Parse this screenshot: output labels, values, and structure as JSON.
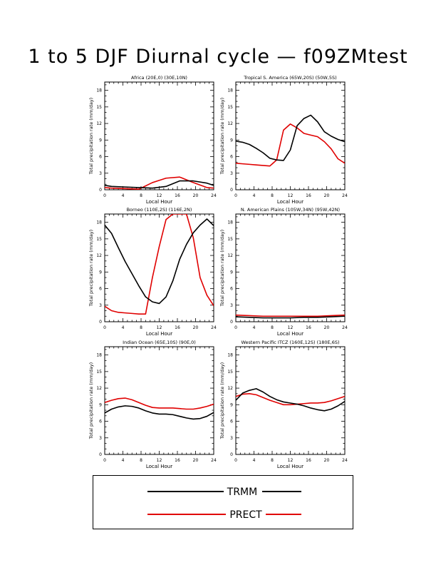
{
  "title": "1 to 5 DJF Diurnal cycle — f09ZMtest",
  "colors": {
    "trmm": "#000000",
    "prect": "#e00000"
  },
  "legend": {
    "trmm_label": "TRMM",
    "prect_label": "PRECT"
  },
  "chart_data": [
    {
      "type": "line",
      "title": "Africa (20E,0) (30E,10N)",
      "xlabel": "Local Hour",
      "ylabel": "Total precipitation rate (mm/day)",
      "xlim": [
        0,
        24
      ],
      "ylim": [
        0,
        19.5
      ],
      "xticks": [
        0,
        4,
        8,
        12,
        16,
        20,
        24
      ],
      "yticks": [
        0,
        3,
        6,
        9,
        12,
        15,
        18
      ],
      "x": [
        0,
        1.5,
        4.5,
        7.5,
        10.5,
        13.5,
        16.5,
        19.5,
        22.5,
        24
      ],
      "series": [
        {
          "name": "TRMM",
          "values": [
            0.8,
            0.6,
            0.5,
            0.4,
            0.3,
            0.6,
            1.6,
            1.6,
            1.2,
            0.8
          ]
        },
        {
          "name": "PRECT",
          "values": [
            0.4,
            0.3,
            0.2,
            0.1,
            1.3,
            2.1,
            2.3,
            1.3,
            0.4,
            0.3
          ]
        }
      ]
    },
    {
      "type": "line",
      "title": "Tropical S. America (65W,20S) (50W,5S)",
      "xlabel": "Local Hour",
      "ylabel": "Total precipitation rate (mm/day)",
      "xlim": [
        0,
        24
      ],
      "ylim": [
        0,
        19.5
      ],
      "xticks": [
        0,
        4,
        8,
        12,
        16,
        20,
        24
      ],
      "yticks": [
        0,
        3,
        6,
        9,
        12,
        15,
        18
      ],
      "x": [
        0,
        1.5,
        3,
        4.5,
        6,
        7.5,
        9,
        10.5,
        12,
        13.5,
        15,
        16.5,
        18,
        19.5,
        21,
        22.5,
        24
      ],
      "series": [
        {
          "name": "TRMM",
          "values": [
            8.8,
            8.6,
            8.2,
            7.5,
            6.7,
            5.7,
            5.4,
            5.3,
            7.2,
            11.6,
            12.9,
            13.5,
            12.3,
            10.5,
            9.7,
            9.1,
            8.7
          ]
        },
        {
          "name": "PRECT",
          "values": [
            4.8,
            4.7,
            4.6,
            4.5,
            4.4,
            4.3,
            5.4,
            10.8,
            11.9,
            11.2,
            10.2,
            9.9,
            9.6,
            8.7,
            7.4,
            5.6,
            4.8
          ]
        }
      ]
    },
    {
      "type": "line",
      "title": "Borneo (110E,2S) (116E,2N)",
      "xlabel": "Local Hour",
      "ylabel": "Total precipitation rate (mm/day)",
      "xlim": [
        0,
        24
      ],
      "ylim": [
        0,
        19.5
      ],
      "xticks": [
        0,
        4,
        8,
        12,
        16,
        20,
        24
      ],
      "yticks": [
        0,
        3,
        6,
        9,
        12,
        15,
        18
      ],
      "x": [
        0,
        1.5,
        3,
        4.5,
        6,
        7.5,
        9,
        10.5,
        12,
        13.5,
        15,
        16.5,
        18,
        19.5,
        21,
        22.5,
        24
      ],
      "series": [
        {
          "name": "TRMM",
          "values": [
            17.5,
            16.0,
            13.4,
            10.9,
            8.7,
            6.5,
            4.5,
            3.6,
            3.3,
            4.5,
            7.4,
            11.3,
            14.0,
            16.1,
            17.5,
            18.6,
            17.4
          ]
        },
        {
          "name": "PRECT",
          "values": [
            2.8,
            2.0,
            1.7,
            1.6,
            1.5,
            1.4,
            1.4,
            8.0,
            13.6,
            18.5,
            21.0,
            21.0,
            21.0,
            15.2,
            8.0,
            4.8,
            2.9
          ]
        }
      ]
    },
    {
      "type": "line",
      "title": "N. American Plains (105W,34N) (95W,42N)",
      "xlabel": "Local Hour",
      "ylabel": "Total precipitation rate (mm/day)",
      "xlim": [
        0,
        24
      ],
      "ylim": [
        0,
        19.5
      ],
      "xticks": [
        0,
        4,
        8,
        12,
        16,
        20,
        24
      ],
      "yticks": [
        0,
        3,
        6,
        9,
        12,
        15,
        18
      ],
      "x": [
        0,
        3,
        6,
        9,
        12,
        15,
        18,
        21,
        24
      ],
      "series": [
        {
          "name": "TRMM",
          "values": [
            0.9,
            0.8,
            0.7,
            0.7,
            0.7,
            0.8,
            0.8,
            0.9,
            1.0
          ]
        },
        {
          "name": "PRECT",
          "values": [
            1.2,
            1.1,
            1.0,
            1.0,
            1.0,
            1.0,
            1.0,
            1.1,
            1.2
          ]
        }
      ]
    },
    {
      "type": "line",
      "title": "Indian Ocean (65E,10S) (90E,0)",
      "xlabel": "Local Hour",
      "ylabel": "Total precipitation rate (mm/day)",
      "xlim": [
        0,
        24
      ],
      "ylim": [
        0,
        19.5
      ],
      "xticks": [
        0,
        4,
        8,
        12,
        16,
        20,
        24
      ],
      "yticks": [
        0,
        3,
        6,
        9,
        12,
        15,
        18
      ],
      "x": [
        0,
        1.5,
        3,
        4.5,
        6,
        7.5,
        9,
        10.5,
        12,
        13.5,
        15,
        16.5,
        18,
        19.5,
        21,
        22.5,
        24
      ],
      "series": [
        {
          "name": "TRMM",
          "values": [
            7.5,
            8.2,
            8.6,
            8.8,
            8.7,
            8.4,
            7.9,
            7.5,
            7.3,
            7.3,
            7.2,
            6.9,
            6.6,
            6.4,
            6.5,
            6.9,
            7.6
          ]
        },
        {
          "name": "PRECT",
          "values": [
            9.4,
            9.8,
            10.1,
            10.2,
            9.9,
            9.4,
            8.9,
            8.5,
            8.4,
            8.4,
            8.4,
            8.3,
            8.2,
            8.2,
            8.4,
            8.7,
            9.1
          ]
        }
      ]
    },
    {
      "type": "line",
      "title": "Western Pacific ITCZ (160E,12S) (180E,6S)",
      "xlabel": "Local Hour",
      "ylabel": "Total precipitation rate (mm/day)",
      "xlim": [
        0,
        24
      ],
      "ylim": [
        0,
        19.5
      ],
      "xticks": [
        0,
        4,
        8,
        12,
        16,
        20,
        24
      ],
      "yticks": [
        0,
        3,
        6,
        9,
        12,
        15,
        18
      ],
      "x": [
        0,
        1.5,
        3,
        4.5,
        6,
        7.5,
        9,
        10.5,
        12,
        13.5,
        15,
        16.5,
        18,
        19.5,
        21,
        22.5,
        24
      ],
      "series": [
        {
          "name": "TRMM",
          "values": [
            9.8,
            11.1,
            11.6,
            11.9,
            11.3,
            10.5,
            9.9,
            9.5,
            9.3,
            9.1,
            8.8,
            8.4,
            8.1,
            7.9,
            8.2,
            8.8,
            9.6
          ]
        },
        {
          "name": "PRECT",
          "values": [
            10.5,
            10.9,
            11.0,
            10.8,
            10.3,
            9.8,
            9.4,
            9.0,
            9.0,
            9.1,
            9.2,
            9.3,
            9.3,
            9.4,
            9.7,
            10.1,
            10.5
          ]
        }
      ]
    }
  ]
}
